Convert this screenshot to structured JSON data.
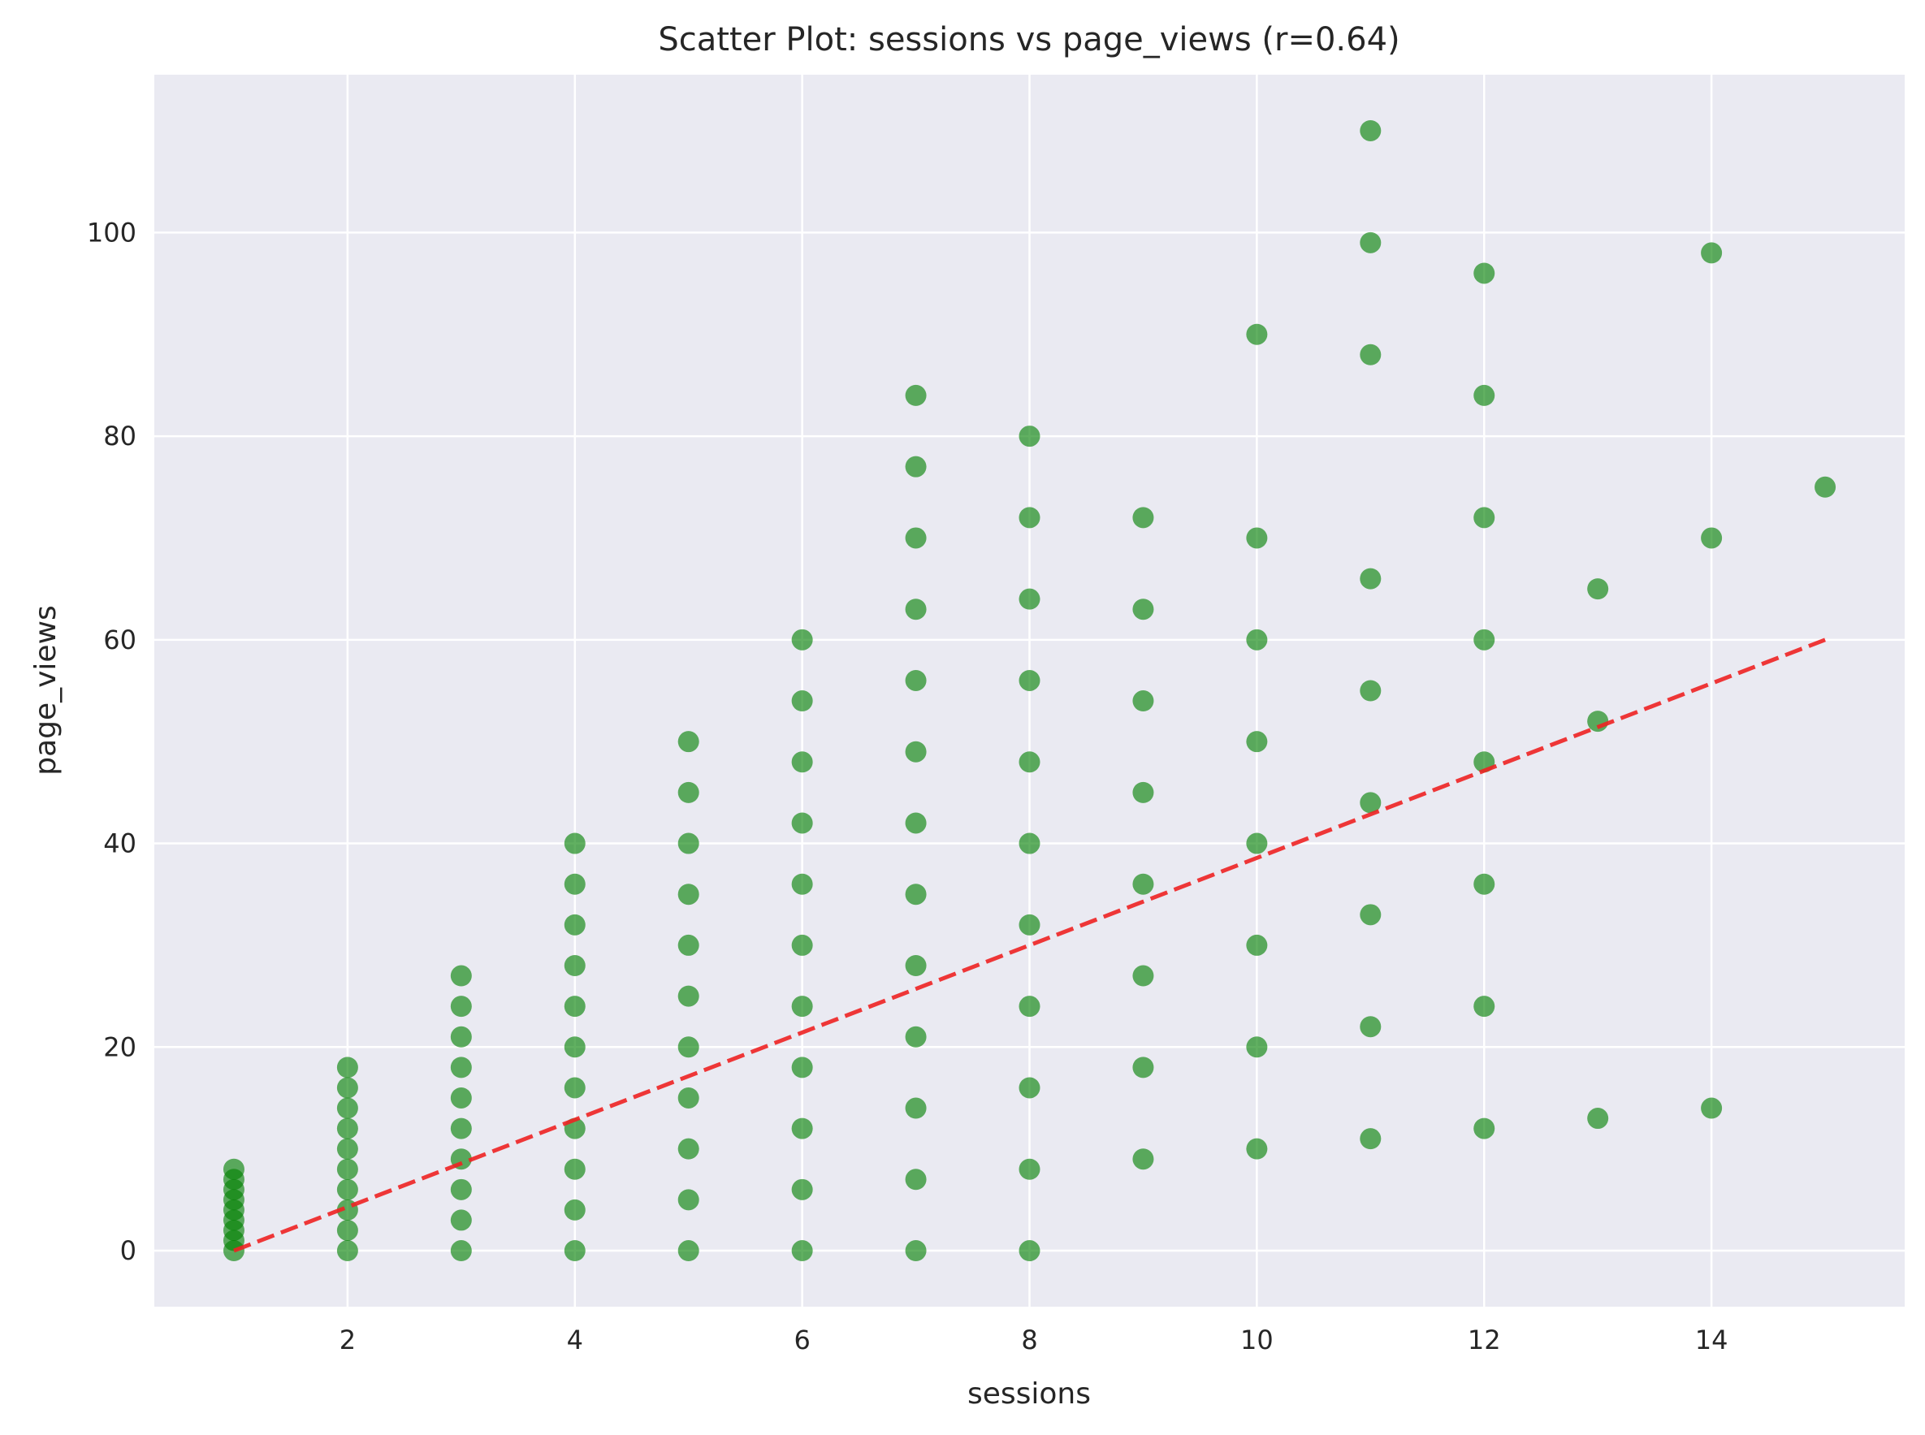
{
  "chart_data": {
    "type": "scatter",
    "title": "Scatter Plot: sessions vs page_views (r=0.64)",
    "xlabel": "sessions",
    "ylabel": "page_views",
    "xlim": [
      0.3,
      15.7
    ],
    "ylim": [
      -5.5,
      115.5
    ],
    "x_ticks": [
      2,
      4,
      6,
      8,
      10,
      12,
      14
    ],
    "y_ticks": [
      0,
      20,
      40,
      60,
      80,
      100
    ],
    "grid": true,
    "colors": {
      "background": "#eaeaf2",
      "grid": "#ffffff",
      "points": "#008000",
      "trend": "#ee2222"
    },
    "trend_line": {
      "x": [
        1,
        15
      ],
      "y": [
        0,
        60
      ],
      "style": "dashed"
    },
    "points": [
      [
        1,
        0
      ],
      [
        1,
        1
      ],
      [
        1,
        2
      ],
      [
        1,
        3
      ],
      [
        1,
        4
      ],
      [
        1,
        5
      ],
      [
        1,
        6
      ],
      [
        1,
        7
      ],
      [
        1,
        8
      ],
      [
        2,
        0
      ],
      [
        2,
        2
      ],
      [
        2,
        4
      ],
      [
        2,
        6
      ],
      [
        2,
        8
      ],
      [
        2,
        10
      ],
      [
        2,
        12
      ],
      [
        2,
        14
      ],
      [
        2,
        16
      ],
      [
        2,
        18
      ],
      [
        3,
        0
      ],
      [
        3,
        3
      ],
      [
        3,
        6
      ],
      [
        3,
        9
      ],
      [
        3,
        12
      ],
      [
        3,
        15
      ],
      [
        3,
        18
      ],
      [
        3,
        21
      ],
      [
        3,
        24
      ],
      [
        3,
        27
      ],
      [
        4,
        0
      ],
      [
        4,
        4
      ],
      [
        4,
        8
      ],
      [
        4,
        12
      ],
      [
        4,
        16
      ],
      [
        4,
        20
      ],
      [
        4,
        24
      ],
      [
        4,
        28
      ],
      [
        4,
        32
      ],
      [
        4,
        36
      ],
      [
        4,
        40
      ],
      [
        5,
        0
      ],
      [
        5,
        5
      ],
      [
        5,
        10
      ],
      [
        5,
        15
      ],
      [
        5,
        20
      ],
      [
        5,
        25
      ],
      [
        5,
        30
      ],
      [
        5,
        35
      ],
      [
        5,
        40
      ],
      [
        5,
        45
      ],
      [
        5,
        50
      ],
      [
        6,
        0
      ],
      [
        6,
        6
      ],
      [
        6,
        12
      ],
      [
        6,
        18
      ],
      [
        6,
        24
      ],
      [
        6,
        30
      ],
      [
        6,
        36
      ],
      [
        6,
        42
      ],
      [
        6,
        48
      ],
      [
        6,
        54
      ],
      [
        6,
        60
      ],
      [
        7,
        0
      ],
      [
        7,
        7
      ],
      [
        7,
        14
      ],
      [
        7,
        21
      ],
      [
        7,
        28
      ],
      [
        7,
        35
      ],
      [
        7,
        42
      ],
      [
        7,
        49
      ],
      [
        7,
        56
      ],
      [
        7,
        63
      ],
      [
        7,
        70
      ],
      [
        7,
        77
      ],
      [
        7,
        84
      ],
      [
        8,
        0
      ],
      [
        8,
        8
      ],
      [
        8,
        16
      ],
      [
        8,
        24
      ],
      [
        8,
        32
      ],
      [
        8,
        40
      ],
      [
        8,
        48
      ],
      [
        8,
        56
      ],
      [
        8,
        64
      ],
      [
        8,
        72
      ],
      [
        8,
        80
      ],
      [
        9,
        9
      ],
      [
        9,
        18
      ],
      [
        9,
        27
      ],
      [
        9,
        36
      ],
      [
        9,
        45
      ],
      [
        9,
        54
      ],
      [
        9,
        63
      ],
      [
        9,
        72
      ],
      [
        10,
        10
      ],
      [
        10,
        20
      ],
      [
        10,
        30
      ],
      [
        10,
        40
      ],
      [
        10,
        50
      ],
      [
        10,
        60
      ],
      [
        10,
        70
      ],
      [
        10,
        90
      ],
      [
        11,
        11
      ],
      [
        11,
        22
      ],
      [
        11,
        33
      ],
      [
        11,
        44
      ],
      [
        11,
        55
      ],
      [
        11,
        66
      ],
      [
        11,
        88
      ],
      [
        11,
        99
      ],
      [
        11,
        110
      ],
      [
        12,
        12
      ],
      [
        12,
        24
      ],
      [
        12,
        36
      ],
      [
        12,
        48
      ],
      [
        12,
        60
      ],
      [
        12,
        72
      ],
      [
        12,
        84
      ],
      [
        12,
        96
      ],
      [
        13,
        13
      ],
      [
        13,
        52
      ],
      [
        13,
        65
      ],
      [
        14,
        14
      ],
      [
        14,
        70
      ],
      [
        14,
        98
      ],
      [
        15,
        75
      ]
    ]
  }
}
